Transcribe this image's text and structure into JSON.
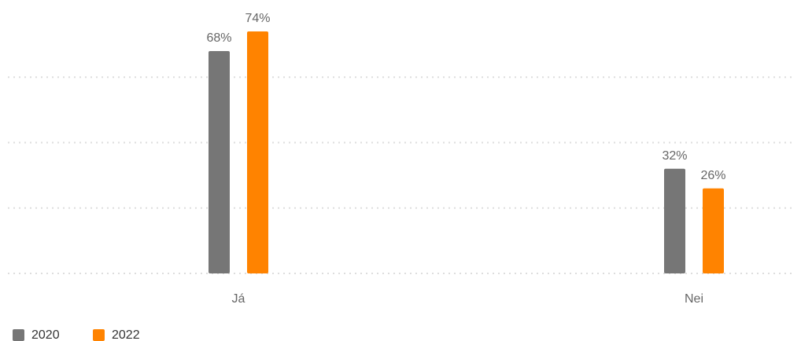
{
  "chart_data": {
    "type": "bar",
    "categories": [
      "Já",
      "Nei"
    ],
    "series": [
      {
        "name": "2020",
        "color": "#767676",
        "values": [
          68,
          32
        ],
        "value_labels": [
          "68%",
          "32%"
        ]
      },
      {
        "name": "2022",
        "color": "#ff8300",
        "values": [
          74,
          26
        ],
        "value_labels": [
          "74%",
          "26%"
        ]
      }
    ],
    "ylim": [
      0,
      80
    ],
    "yticks": [
      0,
      20,
      40,
      60
    ],
    "grid": true,
    "legend": "bottom-left"
  }
}
